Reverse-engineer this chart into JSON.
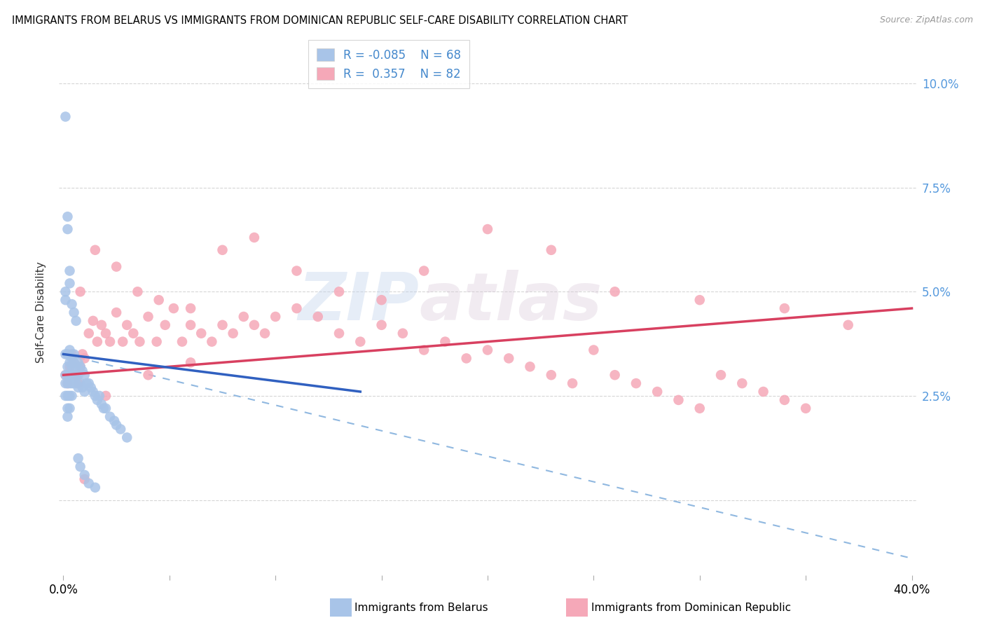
{
  "title": "IMMIGRANTS FROM BELARUS VS IMMIGRANTS FROM DOMINICAN REPUBLIC SELF-CARE DISABILITY CORRELATION CHART",
  "source": "Source: ZipAtlas.com",
  "ylabel": "Self-Care Disability",
  "yticks": [
    0.0,
    0.025,
    0.05,
    0.075,
    0.1
  ],
  "ytick_labels": [
    "",
    "2.5%",
    "5.0%",
    "7.5%",
    "10.0%"
  ],
  "xlim": [
    -0.002,
    0.402
  ],
  "ylim": [
    -0.018,
    0.108
  ],
  "legend_label1": "Immigrants from Belarus",
  "legend_label2": "Immigrants from Dominican Republic",
  "R1": -0.085,
  "N1": 68,
  "R2": 0.357,
  "N2": 82,
  "color_belarus": "#a8c4e8",
  "color_dominican": "#f5a8b8",
  "trendline_belarus_color": "#3060c0",
  "trendline_dominican_color": "#d84060",
  "trendline_ext_color": "#90b8e0",
  "watermark_text": "ZIPatlas",
  "belarus_x": [
    0.001,
    0.001,
    0.001,
    0.001,
    0.001,
    0.002,
    0.002,
    0.002,
    0.002,
    0.002,
    0.002,
    0.002,
    0.003,
    0.003,
    0.003,
    0.003,
    0.003,
    0.003,
    0.004,
    0.004,
    0.004,
    0.004,
    0.004,
    0.005,
    0.005,
    0.005,
    0.005,
    0.006,
    0.006,
    0.006,
    0.007,
    0.007,
    0.007,
    0.008,
    0.008,
    0.009,
    0.009,
    0.01,
    0.01,
    0.011,
    0.012,
    0.013,
    0.014,
    0.015,
    0.016,
    0.017,
    0.018,
    0.019,
    0.02,
    0.022,
    0.024,
    0.025,
    0.027,
    0.03,
    0.001,
    0.001,
    0.002,
    0.002,
    0.003,
    0.003,
    0.004,
    0.005,
    0.006,
    0.007,
    0.008,
    0.01,
    0.012,
    0.015
  ],
  "belarus_y": [
    0.092,
    0.035,
    0.03,
    0.028,
    0.025,
    0.035,
    0.032,
    0.03,
    0.028,
    0.025,
    0.022,
    0.02,
    0.036,
    0.033,
    0.03,
    0.028,
    0.025,
    0.022,
    0.034,
    0.032,
    0.03,
    0.028,
    0.025,
    0.035,
    0.033,
    0.03,
    0.028,
    0.032,
    0.03,
    0.028,
    0.033,
    0.03,
    0.027,
    0.032,
    0.028,
    0.031,
    0.027,
    0.03,
    0.026,
    0.028,
    0.028,
    0.027,
    0.026,
    0.025,
    0.024,
    0.025,
    0.023,
    0.022,
    0.022,
    0.02,
    0.019,
    0.018,
    0.017,
    0.015,
    0.05,
    0.048,
    0.068,
    0.065,
    0.055,
    0.052,
    0.047,
    0.045,
    0.043,
    0.01,
    0.008,
    0.006,
    0.004,
    0.003
  ],
  "dominican_x": [
    0.001,
    0.002,
    0.003,
    0.004,
    0.005,
    0.006,
    0.007,
    0.008,
    0.009,
    0.01,
    0.012,
    0.014,
    0.016,
    0.018,
    0.02,
    0.022,
    0.025,
    0.028,
    0.03,
    0.033,
    0.036,
    0.04,
    0.044,
    0.048,
    0.052,
    0.056,
    0.06,
    0.065,
    0.07,
    0.075,
    0.08,
    0.085,
    0.09,
    0.095,
    0.1,
    0.11,
    0.12,
    0.13,
    0.14,
    0.15,
    0.16,
    0.17,
    0.18,
    0.19,
    0.2,
    0.21,
    0.22,
    0.23,
    0.24,
    0.25,
    0.26,
    0.27,
    0.28,
    0.29,
    0.3,
    0.31,
    0.32,
    0.33,
    0.34,
    0.35,
    0.008,
    0.015,
    0.025,
    0.035,
    0.045,
    0.06,
    0.075,
    0.09,
    0.11,
    0.13,
    0.15,
    0.17,
    0.2,
    0.23,
    0.26,
    0.3,
    0.34,
    0.37,
    0.01,
    0.02,
    0.04,
    0.06
  ],
  "dominican_y": [
    0.03,
    0.028,
    0.032,
    0.035,
    0.033,
    0.03,
    0.028,
    0.032,
    0.035,
    0.034,
    0.04,
    0.043,
    0.038,
    0.042,
    0.04,
    0.038,
    0.045,
    0.038,
    0.042,
    0.04,
    0.038,
    0.044,
    0.038,
    0.042,
    0.046,
    0.038,
    0.042,
    0.04,
    0.038,
    0.042,
    0.04,
    0.044,
    0.042,
    0.04,
    0.044,
    0.046,
    0.044,
    0.04,
    0.038,
    0.042,
    0.04,
    0.036,
    0.038,
    0.034,
    0.036,
    0.034,
    0.032,
    0.03,
    0.028,
    0.036,
    0.03,
    0.028,
    0.026,
    0.024,
    0.022,
    0.03,
    0.028,
    0.026,
    0.024,
    0.022,
    0.05,
    0.06,
    0.056,
    0.05,
    0.048,
    0.046,
    0.06,
    0.063,
    0.055,
    0.05,
    0.048,
    0.055,
    0.065,
    0.06,
    0.05,
    0.048,
    0.046,
    0.042,
    0.005,
    0.025,
    0.03,
    0.033
  ],
  "trendline_belarus_x0": 0.0,
  "trendline_belarus_y0": 0.035,
  "trendline_belarus_x1": 0.14,
  "trendline_belarus_y1": 0.026,
  "trendline_ext_x0": 0.0,
  "trendline_ext_y0": 0.035,
  "trendline_ext_x1": 0.4,
  "trendline_ext_y1": -0.014,
  "trendline_dominican_x0": 0.0,
  "trendline_dominican_y0": 0.03,
  "trendline_dominican_x1": 0.4,
  "trendline_dominican_y1": 0.046
}
